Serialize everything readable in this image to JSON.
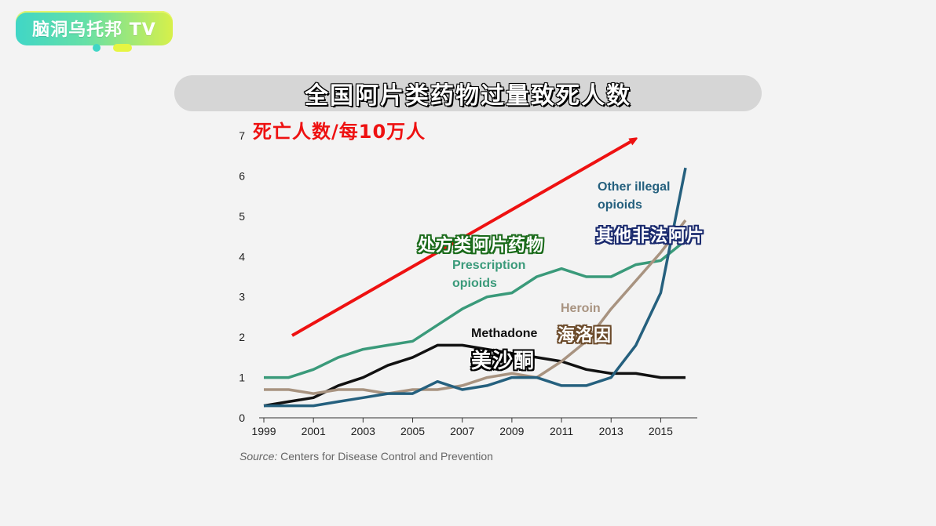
{
  "logo": {
    "text": "脑洞乌托邦 TV"
  },
  "title": "全国阿片类药物过量致死人数",
  "unit_label": "死亡人数/每10万人",
  "chart_data": {
    "type": "line",
    "x": [
      1999,
      2000,
      2001,
      2002,
      2003,
      2004,
      2005,
      2006,
      2007,
      2008,
      2009,
      2010,
      2011,
      2012,
      2013,
      2014,
      2015,
      2016
    ],
    "xticks": [
      "1999",
      "2001",
      "2003",
      "2005",
      "2007",
      "2009",
      "2011",
      "2013",
      "2015"
    ],
    "yticks": [
      "0",
      "1",
      "2",
      "3",
      "4",
      "5",
      "6",
      "7"
    ],
    "ylim": [
      0,
      7
    ],
    "xlim": [
      1999,
      2016
    ],
    "grid": false,
    "series": [
      {
        "name": "Prescription opioids",
        "label_line1": "Prescription",
        "label_line2": "opioids",
        "cn": "处方类阿片药物",
        "color": "#3a9a7a",
        "values": [
          1.0,
          1.0,
          1.2,
          1.5,
          1.7,
          1.8,
          1.9,
          2.3,
          2.7,
          3.0,
          3.1,
          3.5,
          3.7,
          3.5,
          3.5,
          3.8,
          3.9,
          4.4
        ]
      },
      {
        "name": "Methadone",
        "label_line1": "Methadone",
        "label_line2": "",
        "cn": "美沙酮",
        "color": "#111111",
        "values": [
          0.3,
          0.4,
          0.5,
          0.8,
          1.0,
          1.3,
          1.5,
          1.8,
          1.8,
          1.7,
          1.6,
          1.5,
          1.4,
          1.2,
          1.1,
          1.1,
          1.0,
          1.0
        ]
      },
      {
        "name": "Heroin",
        "label_line1": "Heroin",
        "label_line2": "",
        "cn": "海洛因",
        "color": "#a89380",
        "values": [
          0.7,
          0.7,
          0.6,
          0.7,
          0.7,
          0.6,
          0.7,
          0.7,
          0.8,
          1.0,
          1.1,
          1.0,
          1.4,
          1.9,
          2.7,
          3.4,
          4.1,
          4.9
        ]
      },
      {
        "name": "Other illegal opioids",
        "label_line1": "Other illegal",
        "label_line2": "opioids",
        "cn": "其他非法阿片",
        "color": "#25607e",
        "values": [
          0.3,
          0.3,
          0.3,
          0.4,
          0.5,
          0.6,
          0.6,
          0.9,
          0.7,
          0.8,
          1.0,
          1.0,
          0.8,
          0.8,
          1.0,
          1.8,
          3.1,
          6.2
        ]
      }
    ],
    "source_prefix": "Source:",
    "source_text": " Centers for Disease Control and Prevention",
    "trend_arrow_color": "#ee1111"
  }
}
